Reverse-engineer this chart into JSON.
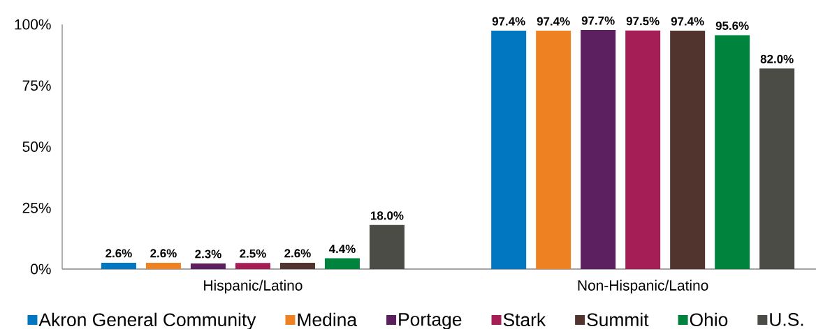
{
  "chart_data": {
    "type": "bar",
    "categories": [
      "Hispanic/Latino",
      "Non-Hispanic/Latino"
    ],
    "series": [
      {
        "name": "Akron General Community",
        "color": "#0077c0",
        "values": [
          2.6,
          97.4
        ],
        "value_labels": [
          "2.6%",
          "97.4%"
        ]
      },
      {
        "name": "Medina",
        "color": "#ee8222",
        "values": [
          2.6,
          97.4
        ],
        "value_labels": [
          "2.6%",
          "97.4%"
        ]
      },
      {
        "name": "Portage",
        "color": "#5c2060",
        "values": [
          2.3,
          97.7
        ],
        "value_labels": [
          "2.3%",
          "97.7%"
        ]
      },
      {
        "name": "Stark",
        "color": "#a51e55",
        "values": [
          2.5,
          97.5
        ],
        "value_labels": [
          "2.5%",
          "97.5%"
        ]
      },
      {
        "name": "Summit",
        "color": "#50342d",
        "values": [
          2.6,
          97.4
        ],
        "value_labels": [
          "2.6%",
          "97.4%"
        ]
      },
      {
        "name": "Ohio",
        "color": "#00843d",
        "values": [
          4.4,
          95.6
        ],
        "value_labels": [
          "4.4%",
          "95.6%"
        ]
      },
      {
        "name": "U.S.",
        "color": "#4b4c45",
        "values": [
          18.0,
          82.0
        ],
        "value_labels": [
          "18.0%",
          "82.0%"
        ]
      }
    ],
    "ylim": [
      0,
      100
    ],
    "yticks": [
      {
        "value": 0,
        "label": "0%"
      },
      {
        "value": 25,
        "label": "25%"
      },
      {
        "value": 50,
        "label": "50%"
      },
      {
        "value": 75,
        "label": "75%"
      },
      {
        "value": 100,
        "label": "100%"
      }
    ],
    "legend": "bottom",
    "grid": false
  }
}
